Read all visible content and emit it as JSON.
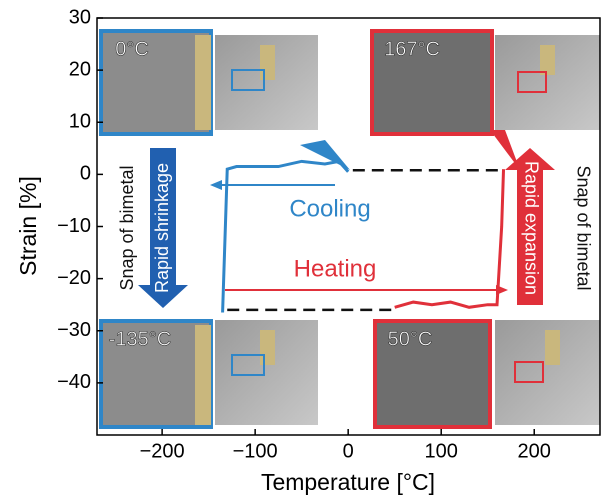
{
  "chart_data": {
    "type": "line",
    "x_label": "Temperature [°C]",
    "y_label": "Strain [%]",
    "xlim": [
      -270,
      275
    ],
    "ylim": [
      -50,
      30
    ],
    "xticks": [
      {
        "value": -200,
        "label": "−200"
      },
      {
        "value": -100,
        "label": "−100"
      },
      0,
      100,
      200
    ],
    "yticks": [
      30,
      20,
      10,
      0,
      {
        "value": -10,
        "label": "−10"
      },
      {
        "value": -20,
        "label": "−20"
      },
      {
        "value": -30,
        "label": "−30"
      },
      {
        "value": -40,
        "label": "−40"
      }
    ],
    "grid": false,
    "series": [
      {
        "color": "#2f86c8",
        "style": "solid",
        "x": [
          0,
          -10,
          -25,
          -50,
          -75,
          -100,
          -120,
          -130,
          -132,
          -135
        ],
        "values": [
          0.5,
          2.5,
          2,
          2.5,
          1.5,
          1.5,
          1.5,
          1,
          -10,
          -26.5
        ]
      },
      {
        "color": "#e0303a",
        "style": "solid",
        "x": [
          50,
          70,
          90,
          110,
          130,
          150,
          160,
          165,
          167
        ],
        "values": [
          -25.5,
          -24.5,
          -25,
          -24.5,
          -25.5,
          -25,
          -25,
          -10,
          1
        ]
      },
      {
        "color": "#111111",
        "style": "dashed",
        "x": [
          5,
          167
        ],
        "values": [
          0.8,
          0.8
        ]
      },
      {
        "color": "#111111",
        "style": "dashed",
        "x": [
          -130,
          50
        ],
        "values": [
          -26,
          -26
        ]
      }
    ],
    "annotations": [
      "Cooling",
      "Heating",
      "Snap of bimetal",
      "Rapid shrinkage",
      "Rapid expansion",
      "Snap of bimetal",
      "0°C",
      "167°C",
      "-135°C",
      "50°C"
    ]
  }
}
